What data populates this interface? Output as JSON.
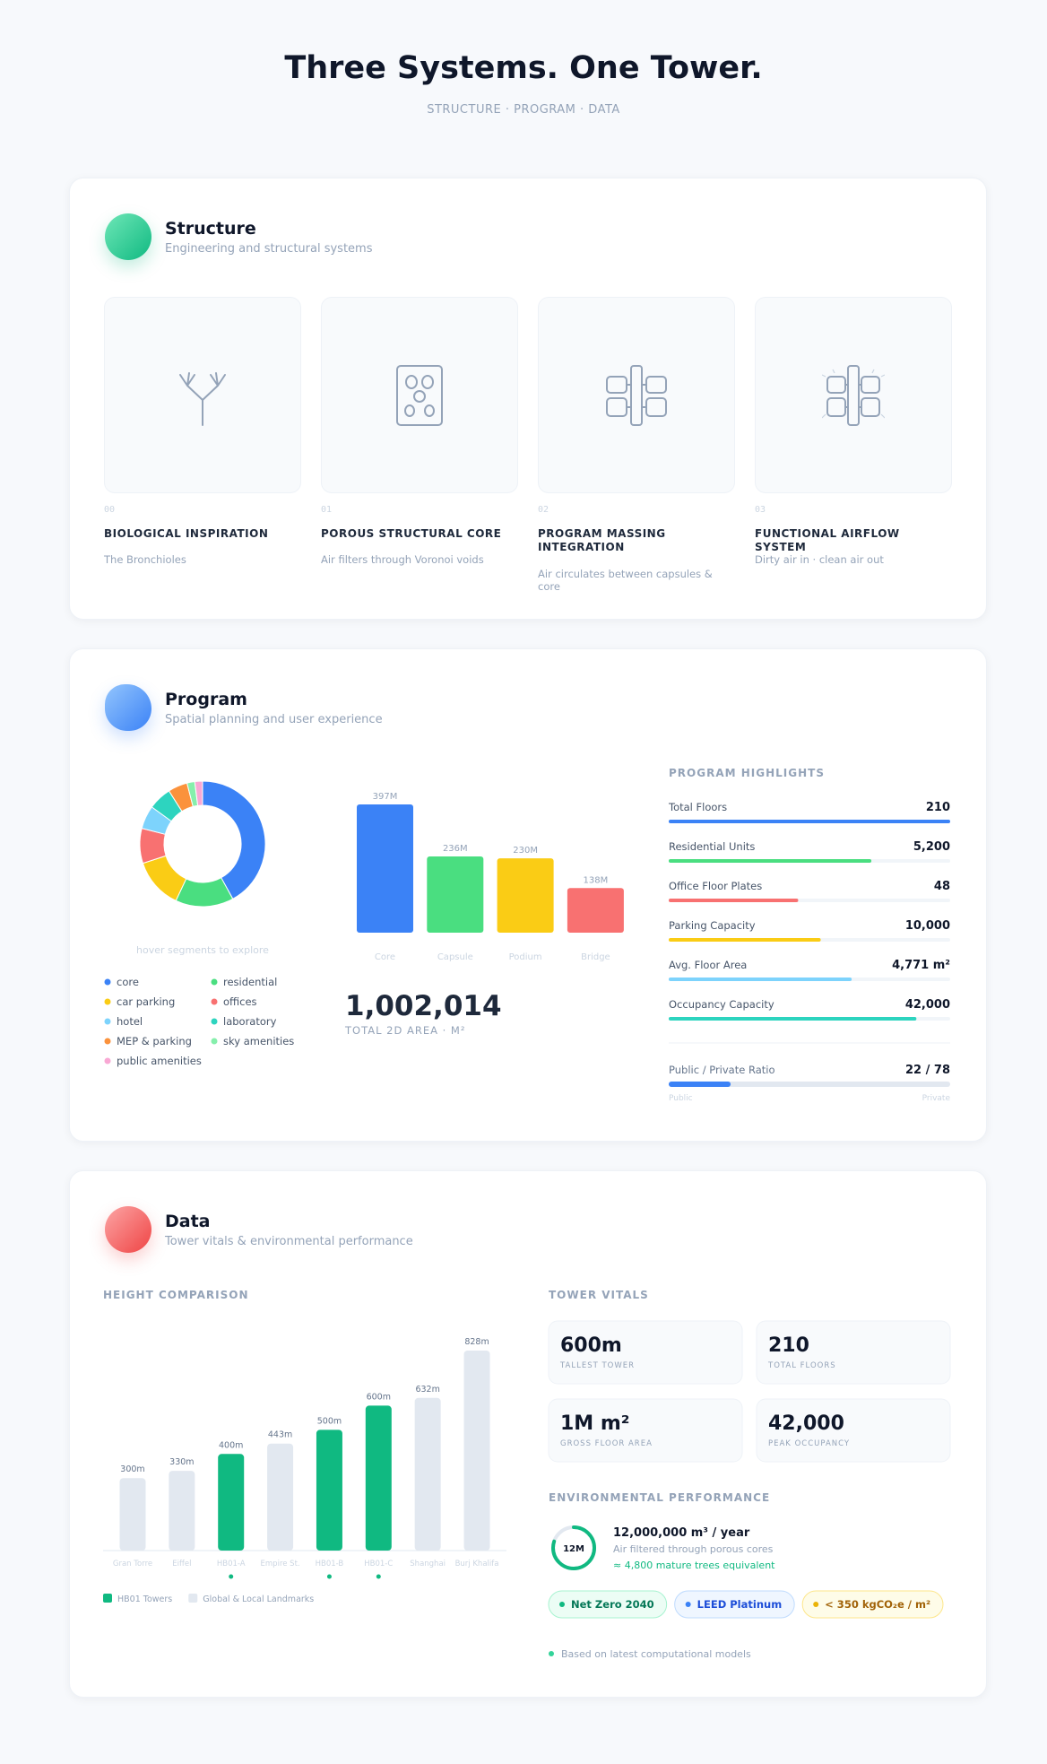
{
  "header": {
    "title": "Three Systems. One Tower.",
    "subtitle": "STRUCTURE · PROGRAM · DATA"
  },
  "structure": {
    "title": "Structure",
    "subtitle": "Engineering and structural systems",
    "cards": [
      {
        "number": "00",
        "title": "BIOLOGICAL INSPIRATION",
        "description": "The Bronchioles"
      },
      {
        "number": "01",
        "title": "POROUS STRUCTURAL CORE",
        "description": "Air filters through Voronoi voids"
      },
      {
        "number": "02",
        "title": "PROGRAM MASSING INTEGRATION",
        "description": "Air circulates between capsules & core"
      },
      {
        "number": "03",
        "title": "FUNCTIONAL AIRFLOW SYSTEM",
        "description": "Dirty air in · clean air out"
      }
    ]
  },
  "program": {
    "title": "Program",
    "subtitle": "Spatial planning and user experience",
    "donut": {
      "hint": "hover segments to explore",
      "segments": [
        {
          "name": "core",
          "color": "#3b82f6",
          "value": 42
        },
        {
          "name": "residential",
          "color": "#4ade80",
          "value": 15
        },
        {
          "name": "car parking",
          "color": "#facc15",
          "value": 13
        },
        {
          "name": "offices",
          "color": "#f87171",
          "value": 9
        },
        {
          "name": "hotel",
          "color": "#7dd3fc",
          "value": 6
        },
        {
          "name": "laboratory",
          "color": "#2dd4bf",
          "value": 6
        },
        {
          "name": "MEP & parking",
          "color": "#fb923c",
          "value": 5
        },
        {
          "name": "sky amenities",
          "color": "#86efac",
          "value": 2
        },
        {
          "name": "public amenities",
          "color": "#f9a8d4",
          "value": 2
        }
      ]
    },
    "area_chart": {
      "type": "bar",
      "categories": [
        "Core",
        "Capsule",
        "Podium",
        "Bridge"
      ],
      "values": [
        397,
        236,
        230,
        138
      ],
      "value_labels": [
        "397M",
        "236M",
        "230M",
        "138M"
      ],
      "colors": [
        "#3b82f6",
        "#4ade80",
        "#facc15",
        "#f87171"
      ]
    },
    "total": {
      "value": "1,002,014",
      "label": "TOTAL 2D AREA · M²"
    },
    "highlights": {
      "heading": "PROGRAM HIGHLIGHTS",
      "items": [
        {
          "label": "Total Floors",
          "value": "210",
          "progress": 100,
          "color": "#3b82f6"
        },
        {
          "label": "Residential Units",
          "value": "5,200",
          "progress": 72,
          "color": "#4ade80"
        },
        {
          "label": "Office Floor Plates",
          "value": "48",
          "progress": 46,
          "color": "#f87171"
        },
        {
          "label": "Parking Capacity",
          "value": "10,000",
          "progress": 54,
          "color": "#facc15"
        },
        {
          "label": "Avg. Floor Area",
          "value": "4,771 m²",
          "progress": 65,
          "color": "#7dd3fc"
        },
        {
          "label": "Occupancy Capacity",
          "value": "42,000",
          "progress": 88,
          "color": "#2dd4bf"
        }
      ],
      "ratio": {
        "label": "Public / Private Ratio",
        "value": "22 / 78",
        "public": 22,
        "public_label": "Public",
        "private_label": "Private",
        "color": "#3b82f6"
      }
    }
  },
  "data": {
    "title": "Data",
    "subtitle": "Tower vitals & environmental performance",
    "height_chart": {
      "type": "bar",
      "heading": "HEIGHT COMPARISON",
      "categories": [
        "Gran Torre",
        "Eiffel",
        "HB01-A",
        "Empire St.",
        "HB01-B",
        "HB01-C",
        "Shanghai",
        "Burj Khalifa"
      ],
      "series": [
        {
          "name": "HB01 Towers",
          "color": "#10b981",
          "values": [
            null,
            null,
            400,
            null,
            500,
            600,
            null,
            null
          ],
          "value_labels": [
            null,
            null,
            "400m",
            null,
            "500m",
            "600m",
            null,
            null
          ]
        },
        {
          "name": "Global & Local Landmarks",
          "color": "#e2e8f0",
          "values": [
            300,
            330,
            null,
            443,
            null,
            null,
            632,
            828
          ],
          "value_labels": [
            "300m",
            "330m",
            null,
            "443m",
            null,
            null,
            "632m",
            "828m"
          ]
        }
      ]
    },
    "vitals": {
      "heading": "TOWER VITALS",
      "tiles": [
        {
          "value": "600m",
          "label": "TALLEST TOWER"
        },
        {
          "value": "210",
          "label": "TOTAL FLOORS"
        },
        {
          "value": "1M m²",
          "label": "GROSS FLOOR AREA"
        },
        {
          "value": "42,000",
          "label": "PEAK OCCUPANCY"
        }
      ]
    },
    "environment": {
      "heading": "ENVIRONMENTAL PERFORMANCE",
      "ring_label": "12M",
      "ring_progress": 80,
      "headline": "12,000,000 m³ / year",
      "description": "Air filtered through porous cores",
      "note": "≈ 4,800 mature trees equivalent",
      "badges": [
        "Net Zero 2040",
        "LEED Platinum",
        "< 350 kgCO₂e / m²"
      ],
      "footnote": "Based on latest computational models"
    }
  }
}
